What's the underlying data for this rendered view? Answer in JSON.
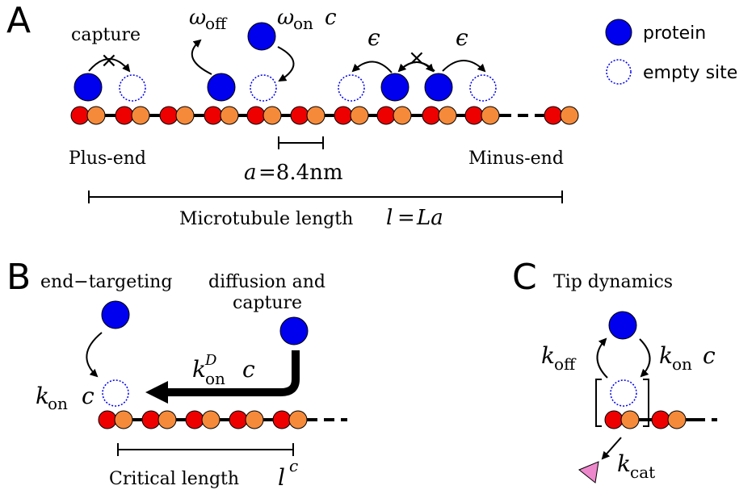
{
  "panels": {
    "a": "A",
    "b": "B",
    "c": "C"
  },
  "legend": {
    "protein": "protein",
    "empty_site": "empty site"
  },
  "panel_a": {
    "capture": "capture",
    "omega_off": "ω",
    "omega_off_sub": "off",
    "omega_on": "ω",
    "omega_on_sub": "on",
    "omega_on_c": "c",
    "epsilon_left": "ϵ",
    "epsilon_right": "ϵ",
    "cross_left": "×",
    "cross_right": "×",
    "plus_end": "Plus-end",
    "minus_end": "Minus-end",
    "lattice_a": "a",
    "lattice_value": "=8.4nm",
    "mt_length_label": "Microtubule length",
    "mt_length_l": "l",
    "mt_length_eq": "=",
    "mt_length_La": "La"
  },
  "panel_b": {
    "end_targeting": "end−targeting",
    "diffusion_line1": "diffusion and",
    "diffusion_line2": "capture",
    "kon": "k",
    "kon_sub": "on",
    "kon_c": "c",
    "konD": "k",
    "konD_sup": "D",
    "konD_sub": "on",
    "konD_c": "c",
    "critical_length": "Critical length",
    "lc_l": "l",
    "lc_sup": "c"
  },
  "panel_c": {
    "title": "Tip dynamics",
    "koff": "k",
    "koff_sub": "off",
    "kon": "k",
    "kon_sub": "on",
    "kon_c": "c",
    "kcat": "k",
    "kcat_sub": "cat"
  },
  "colors": {
    "protein": "#0000ee",
    "red_subunit": "#ee0000",
    "orange_subunit": "#f58a3a",
    "product": "#ee88cc"
  }
}
